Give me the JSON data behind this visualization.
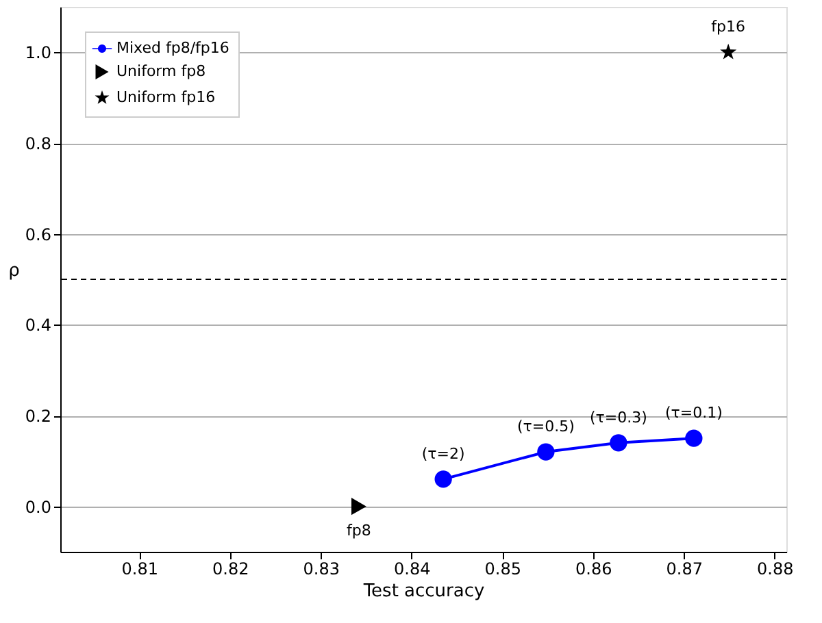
{
  "chart_data": {
    "type": "line",
    "xlabel": "Test accuracy",
    "ylabel": "ρ",
    "xlim": [
      0.8013,
      0.8813
    ],
    "ylim": [
      -0.1,
      1.1
    ],
    "xticks": [
      0.81,
      0.82,
      0.83,
      0.84,
      0.85,
      0.86,
      0.87,
      0.88
    ],
    "yticks": [
      {
        "value": 0,
        "label": "0.0"
      },
      {
        "value": 0.2,
        "label": "0.2"
      },
      {
        "value": 0.4,
        "label": "0.4"
      },
      {
        "value": 0.6,
        "label": "0.6"
      },
      {
        "value": 0.8,
        "label": "0.8"
      },
      {
        "value": 1,
        "label": "1.0"
      }
    ],
    "grid": "y",
    "legend": "top left",
    "series": [
      {
        "name": "Mixed fp8/fp16",
        "marker": "circle",
        "color": "#0000ff",
        "x": [
          0.8435,
          0.8548,
          0.8628,
          0.8711
        ],
        "values": [
          0.06,
          0.12,
          0.14,
          0.15
        ]
      },
      {
        "name": "Uniform fp8",
        "type": "scatter",
        "marker": "triangle",
        "color": "#000000",
        "x": [
          0.8342
        ],
        "values": [
          0.0
        ]
      },
      {
        "name": "Uniform fp16",
        "type": "scatter",
        "marker": "star",
        "color": "#000000",
        "x": [
          0.8749
        ],
        "values": [
          1.0
        ]
      }
    ],
    "ref_lines": [
      {
        "axis": "y",
        "value": 0.5,
        "color": "#000000",
        "line_style": "dashed"
      }
    ],
    "annotations": [
      {
        "text": "(τ=2)",
        "x": 0.8435,
        "y": 0.06
      },
      {
        "text": "(τ=0.5)",
        "x": 0.8548,
        "y": 0.12
      },
      {
        "text": "(τ=0.3)",
        "x": 0.8628,
        "y": 0.14
      },
      {
        "text": "(τ=0.1)",
        "x": 0.8711,
        "y": 0.15
      },
      {
        "text": "fp8",
        "x": 0.8342,
        "y": 0.0
      },
      {
        "text": "fp16",
        "x": 0.8749,
        "y": 1.0
      }
    ]
  }
}
